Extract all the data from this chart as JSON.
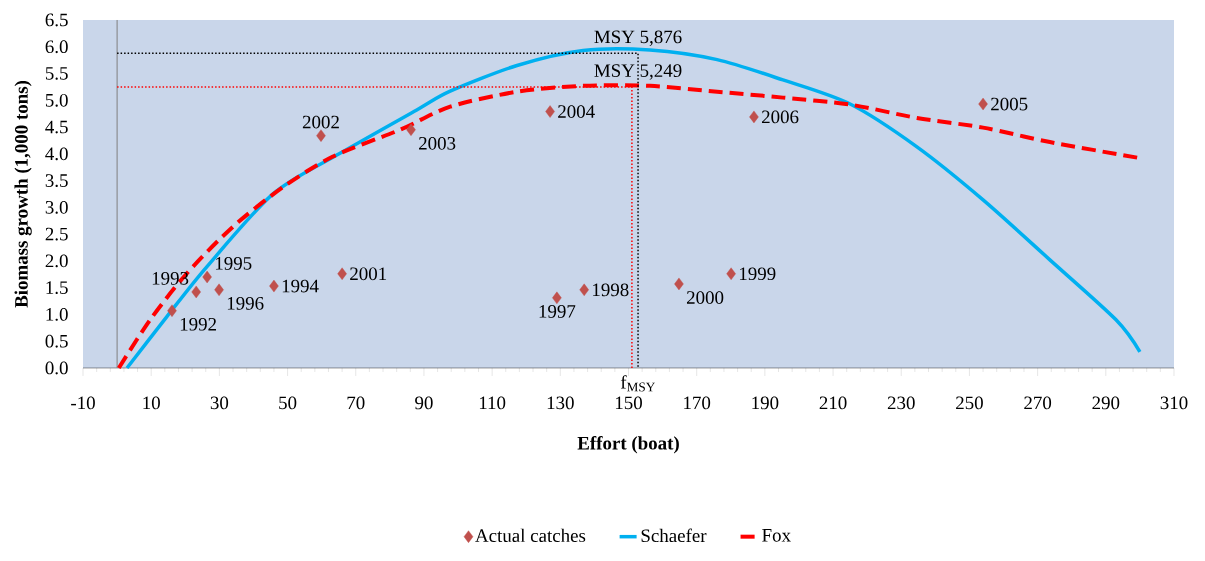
{
  "chart_data": {
    "type": "scatter",
    "xlabel": "Effort (boat)",
    "ylabel": "Biomass growth (1,000 tons)",
    "xlim": [
      -10,
      310
    ],
    "ylim": [
      0,
      6.5
    ],
    "xticks": [
      -10,
      10,
      30,
      50,
      70,
      90,
      110,
      130,
      150,
      170,
      190,
      210,
      230,
      250,
      270,
      290,
      310
    ],
    "yticks": [
      {
        "value": 0,
        "label": "0.0"
      },
      0.5,
      {
        "value": 1,
        "label": "1.0"
      },
      1.5,
      {
        "value": 2,
        "label": "2.0"
      },
      2.5,
      {
        "value": 3,
        "label": "3.0"
      },
      3.5,
      {
        "value": 4,
        "label": "4.0"
      },
      4.5,
      {
        "value": 5,
        "label": "5.0"
      },
      5.5,
      {
        "value": 6,
        "label": "6.0"
      },
      6.5
    ],
    "grid": false,
    "legend": "bottom",
    "series": [
      {
        "name": "Actual catches",
        "marker": "diamond",
        "color": "#c0504d",
        "x": [
          16.1,
          23.2,
          46.0,
          26.4,
          29.9,
          129.0,
          137.0,
          180.1,
          164.8,
          66.0,
          59.8,
          86.2,
          127.0,
          254.0,
          186.8
        ],
        "values": [
          1.07,
          1.42,
          1.53,
          1.7,
          1.46,
          1.31,
          1.46,
          1.76,
          1.57,
          1.76,
          4.34,
          4.45,
          4.79,
          4.93,
          4.69
        ]
      },
      {
        "name": "Schaefer",
        "type": "line",
        "color": "#00b0f0",
        "line_style": "solid",
        "x": [
          2.9,
          14.6,
          26.3,
          45.9,
          65.4,
          87.9,
          97.7,
          117.3,
          136.7,
          156.3,
          176.0,
          195.3,
          215.0,
          234.6,
          254.0,
          273.6,
          293.0,
          300.0
        ],
        "values": [
          0,
          0.96,
          1.89,
          3.26,
          4.01,
          4.82,
          5.17,
          5.65,
          5.93,
          5.94,
          5.76,
          5.38,
          4.93,
          4.13,
          3.14,
          2.02,
          0.9,
          0.3
        ]
      },
      {
        "name": "Fox",
        "type": "line",
        "color": "#ff0000",
        "line_style": "dashed",
        "x": [
          0.5,
          9.7,
          20.5,
          34.0,
          48.7,
          63.3,
          83.0,
          97.7,
          117.3,
          136.7,
          156.3,
          176.0,
          195.3,
          215.0,
          234.6,
          254.0,
          273.6,
          300.0
        ],
        "values": [
          0,
          0.9,
          1.77,
          2.64,
          3.38,
          3.95,
          4.45,
          4.88,
          5.16,
          5.27,
          5.27,
          5.16,
          5.05,
          4.92,
          4.67,
          4.49,
          4.22,
          3.92
        ]
      },
      {
        "type": "line",
        "color": "#000000",
        "line_style": "dotted",
        "x": [
          0,
          152.8,
          152.8
        ],
        "values": [
          5.88,
          5.88,
          0
        ]
      },
      {
        "type": "line",
        "color": "#ff0000",
        "line_style": "dotted",
        "x": [
          0,
          151,
          151
        ],
        "values": [
          5.25,
          5.25,
          0
        ]
      }
    ],
    "annotations": [
      {
        "text": "1992",
        "x": 16.1,
        "y": 1.07
      },
      {
        "text": "1993",
        "x": 23.2,
        "y": 1.42
      },
      {
        "text": "1994",
        "x": 46.0,
        "y": 1.53
      },
      {
        "text": "1995",
        "x": 26.4,
        "y": 1.7
      },
      {
        "text": "1996",
        "x": 29.9,
        "y": 1.46
      },
      {
        "text": "1997",
        "x": 129.0,
        "y": 1.31
      },
      {
        "text": "1998",
        "x": 137.0,
        "y": 1.46
      },
      {
        "text": "1999",
        "x": 180.1,
        "y": 1.76
      },
      {
        "text": "2000",
        "x": 164.8,
        "y": 1.57
      },
      {
        "text": "2001",
        "x": 66.0,
        "y": 1.76
      },
      {
        "text": "2002",
        "x": 59.8,
        "y": 4.34
      },
      {
        "text": "2003",
        "x": 86.2,
        "y": 4.45
      },
      {
        "text": "2004",
        "x": 127.0,
        "y": 4.79
      },
      {
        "text": "2005",
        "x": 254.0,
        "y": 4.93
      },
      {
        "text": "2006",
        "x": 186.8,
        "y": 4.69
      },
      {
        "text": "MSY 5,876",
        "x": 152.8,
        "y": 5.88
      },
      {
        "text": "MSY 5,249",
        "x": 152.8,
        "y": 5.25
      },
      {
        "text": "f$_{MSY}$",
        "x": 152.8,
        "y": 0
      }
    ]
  }
}
